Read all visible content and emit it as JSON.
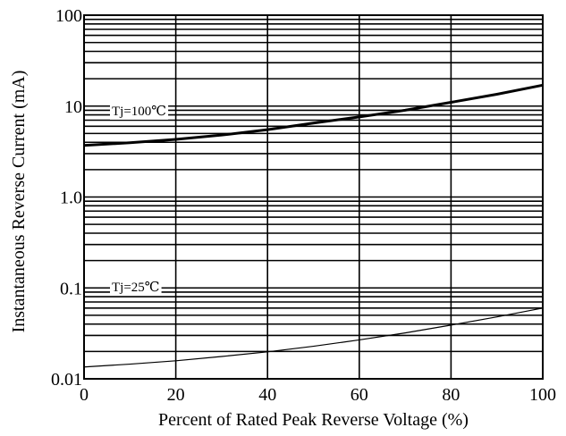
{
  "chart_data": {
    "type": "line",
    "xlabel": "Percent of Rated Peak Reverse Voltage (%)",
    "ylabel": "Instantaneous Reverse Current (mA)",
    "xlim": [
      0,
      100
    ],
    "ylim": [
      0.01,
      100
    ],
    "yscale": "log",
    "grid": true,
    "x_ticks": [
      0,
      20,
      40,
      60,
      80,
      100
    ],
    "x_tick_labels": [
      "0",
      "20",
      "40",
      "60",
      "80",
      "100"
    ],
    "y_ticks": [
      0.01,
      0.1,
      1,
      10,
      100
    ],
    "y_tick_labels": [
      "0.01",
      "0.1",
      "1.0",
      "10",
      "100"
    ],
    "series": [
      {
        "name": "Tj=100℃",
        "label": "Tj=100℃",
        "color": "#000000",
        "x": [
          0,
          10,
          20,
          30,
          40,
          50,
          60,
          70,
          80,
          90,
          100
        ],
        "y": [
          3.7,
          3.95,
          4.3,
          4.8,
          5.5,
          6.5,
          7.6,
          9.0,
          11.0,
          13.5,
          17.0
        ]
      },
      {
        "name": "Tj=25℃",
        "label": "Tj=25℃",
        "color": "#000000",
        "x": [
          0,
          10,
          20,
          30,
          40,
          50,
          60,
          70,
          80,
          90,
          100
        ],
        "y": [
          0.0135,
          0.0145,
          0.0158,
          0.0176,
          0.0198,
          0.0228,
          0.0268,
          0.032,
          0.039,
          0.048,
          0.06
        ]
      }
    ]
  }
}
